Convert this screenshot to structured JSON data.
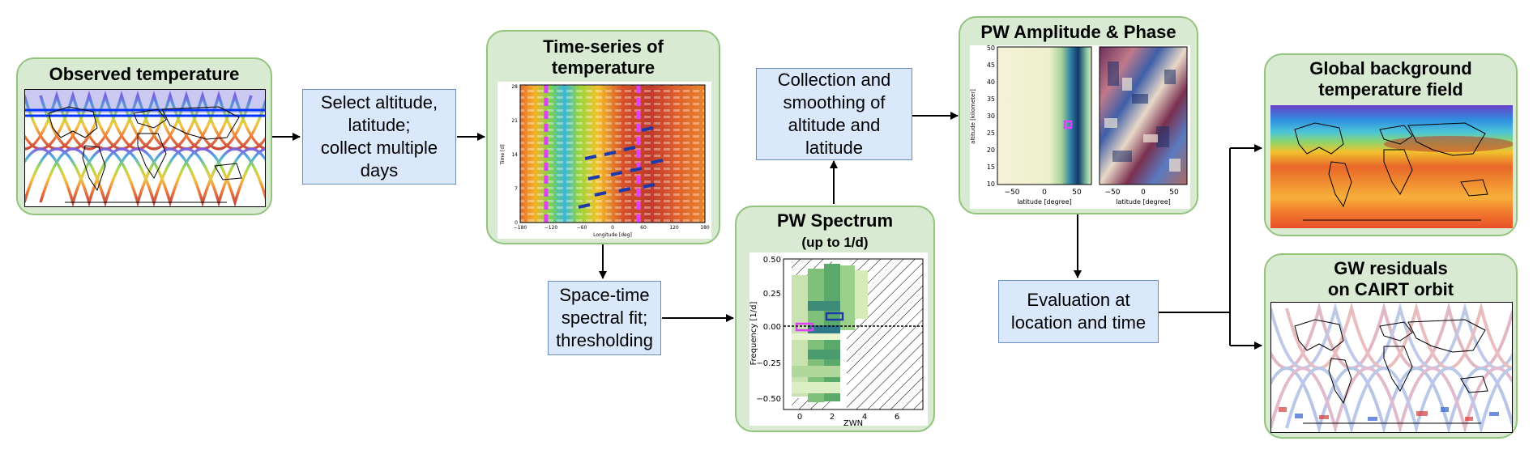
{
  "colors": {
    "green_fill": "#d9ead3",
    "green_border": "#93c47d",
    "blue_fill": "#dae8fc",
    "blue_border": "#6c8ebf",
    "arrow": "#000000"
  },
  "boxes": {
    "observed_temperature": {
      "title": "Observed temperature"
    },
    "select": {
      "label": "Select altitude,\nlatitude;\ncollect multiple\ndays"
    },
    "time_series": {
      "title": "Time-series of\ntemperature",
      "y_label": "Time [d]",
      "x_label": "Longitude [deg]",
      "y_ticks": [
        "28",
        "21",
        "14",
        "7",
        "0"
      ],
      "x_ticks": [
        "−180",
        "−120",
        "−60",
        "0",
        "60",
        "120",
        "180"
      ]
    },
    "spectral_fit": {
      "label": "Space-time\nspectral fit;\nthresholding"
    },
    "collection": {
      "label": "Collection and\nsmoothing of\naltitude and\nlatitude"
    },
    "pw_spectrum": {
      "title": "PW Spectrum",
      "subtitle": "(up to 1/d)",
      "y_label": "Frequency [1/d]",
      "x_label": "ZWN",
      "y_ticks": [
        "0.50",
        "0.25",
        "0.00",
        "−0.25",
        "−0.50"
      ],
      "x_ticks": [
        "0",
        "2",
        "4",
        "6"
      ]
    },
    "pw_amp_phase": {
      "title": "PW Amplitude & Phase",
      "y_label": "altitude [kilometer]",
      "y_ticks": [
        "50",
        "45",
        "40",
        "35",
        "30",
        "25",
        "20",
        "15",
        "10"
      ],
      "x_ticks_left": [
        "−50",
        "0",
        "50"
      ],
      "x_ticks_right": [
        "−50",
        "0",
        "50"
      ],
      "x_label_left": "latitude [degree]",
      "x_label_right": "latitude [degree]"
    },
    "evaluation": {
      "label": "Evaluation at\nlocation and time"
    },
    "global_background": {
      "title": "Global background\ntemperature field"
    },
    "gw_residuals": {
      "title": "GW residuals\non CAIRT orbit"
    }
  }
}
